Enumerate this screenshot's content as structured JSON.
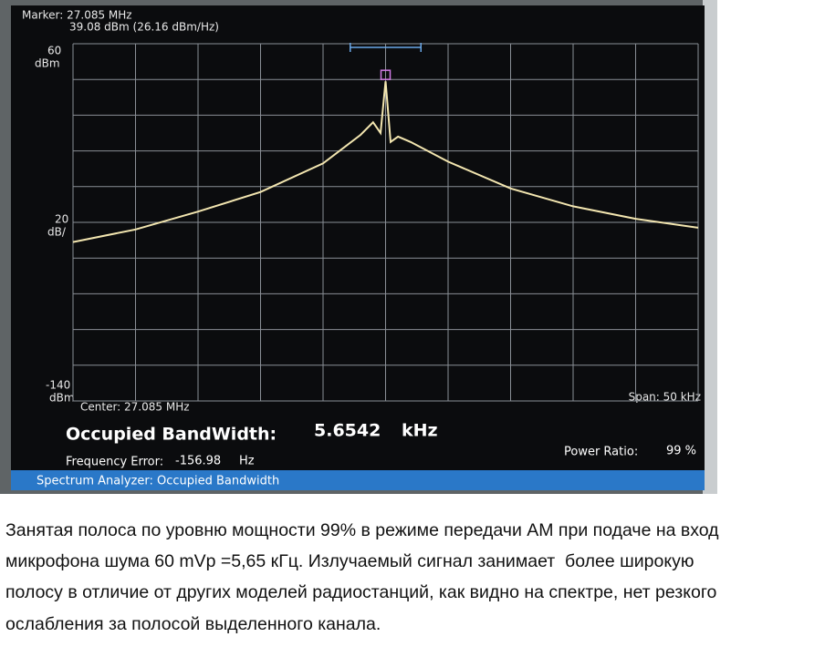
{
  "screen": {
    "marker_label": "Marker: 27.085 MHz",
    "marker_level": "39.08 dBm (26.16 dBm/Hz)",
    "ref_level": 60,
    "ref_unit": "dBm",
    "scale_per_div": 20,
    "scale_unit": "dB/",
    "bottom_level": -140,
    "bottom_unit": "dBm",
    "center": "Center: 27.085 MHz",
    "span": "Span: 50 kHz",
    "trace": {
      "x": [
        -25,
        -20,
        -15,
        -10,
        -5,
        -2,
        -1,
        -0.4,
        0,
        0.4,
        1,
        2,
        5,
        10,
        15,
        20,
        25
      ],
      "values": [
        -51,
        -44,
        -34,
        -23,
        -7,
        9,
        16,
        10,
        39,
        5,
        8,
        5,
        -6,
        -21,
        -31,
        -38,
        -43
      ],
      "xlim": [
        -25,
        25
      ],
      "color": "#f3e6b0"
    },
    "obw_label": "Occupied BandWidth:",
    "obw_value": 5.6542,
    "obw_unit": "kHz",
    "freq_error_label": "Frequency Error:",
    "freq_error_value": -156.98,
    "freq_error_unit": "Hz",
    "power_ratio_label": "Power Ratio:",
    "power_ratio_value": "99 %",
    "mode": "Spectrum Analyzer: Occupied Bandwidth"
  },
  "caption": {
    "lines": [
      "Занятая полоса по уровню мощности 99% в режиме передачи AM при подаче на вход",
      "микрофона шума 60 mVp =5,65 кГц. Излучаемый сигнал занимает  более широкую",
      "полосу в отличие от других моделей радиостанций, как видно на спектре, нет резкого",
      "ослабления за полосой выделенного канала."
    ]
  }
}
